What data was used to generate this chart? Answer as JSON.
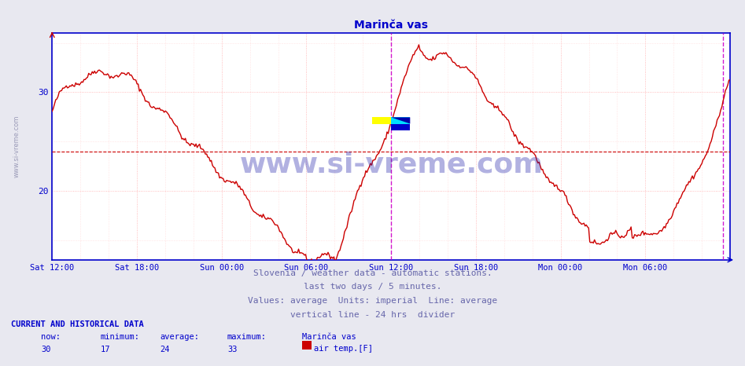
{
  "title": "Marinča vas",
  "title_color": "#0000cc",
  "title_fontsize": 10,
  "bg_color": "#e8e8f0",
  "plot_bg_color": "#ffffff",
  "line_color": "#cc0000",
  "line_width": 1.0,
  "axis_color": "#0000cc",
  "grid_color": "#ffaaaa",
  "grid_minor_color": "#ffcccc",
  "grid_style": ":",
  "avg_line_color": "#cc0000",
  "avg_line_style": "--",
  "avg_value": 24,
  "ylim": [
    13,
    36
  ],
  "ytick_positions": [
    20,
    30
  ],
  "ytick_labels": [
    "20",
    "30"
  ],
  "xlabel_color": "#0000aa",
  "xtick_positions": [
    0,
    6,
    12,
    18,
    24,
    30,
    36,
    42
  ],
  "xtick_labels": [
    "Sat 12:00",
    "Sat 18:00",
    "Sun 00:00",
    "Sun 06:00",
    "Sun 12:00",
    "Sun 18:00",
    "Mon 00:00",
    "Mon 06:00"
  ],
  "watermark_text": "www.si-vreme.com",
  "watermark_color": "#2222aa",
  "watermark_alpha": 0.35,
  "vline1_x": 24,
  "vline2_x": 47.5,
  "vline_color": "#cc00cc",
  "vline_style": "--",
  "vline_alpha": 0.9,
  "footer_lines": [
    "Slovenia / weather data - automatic stations.",
    "last two days / 5 minutes.",
    "Values: average  Units: imperial  Line: average",
    "vertical line - 24 hrs  divider"
  ],
  "footer_color": "#6666aa",
  "footer_fontsize": 8,
  "bottom_label_color": "#0000cc",
  "station_name": "Marinča vas",
  "now_val": 30,
  "min_val": 17,
  "avg_val": 24,
  "max_val": 33,
  "legend_label": "air temp.[F]",
  "legend_color": "#cc0000",
  "n_points": 576,
  "xlim": [
    0,
    48
  ]
}
